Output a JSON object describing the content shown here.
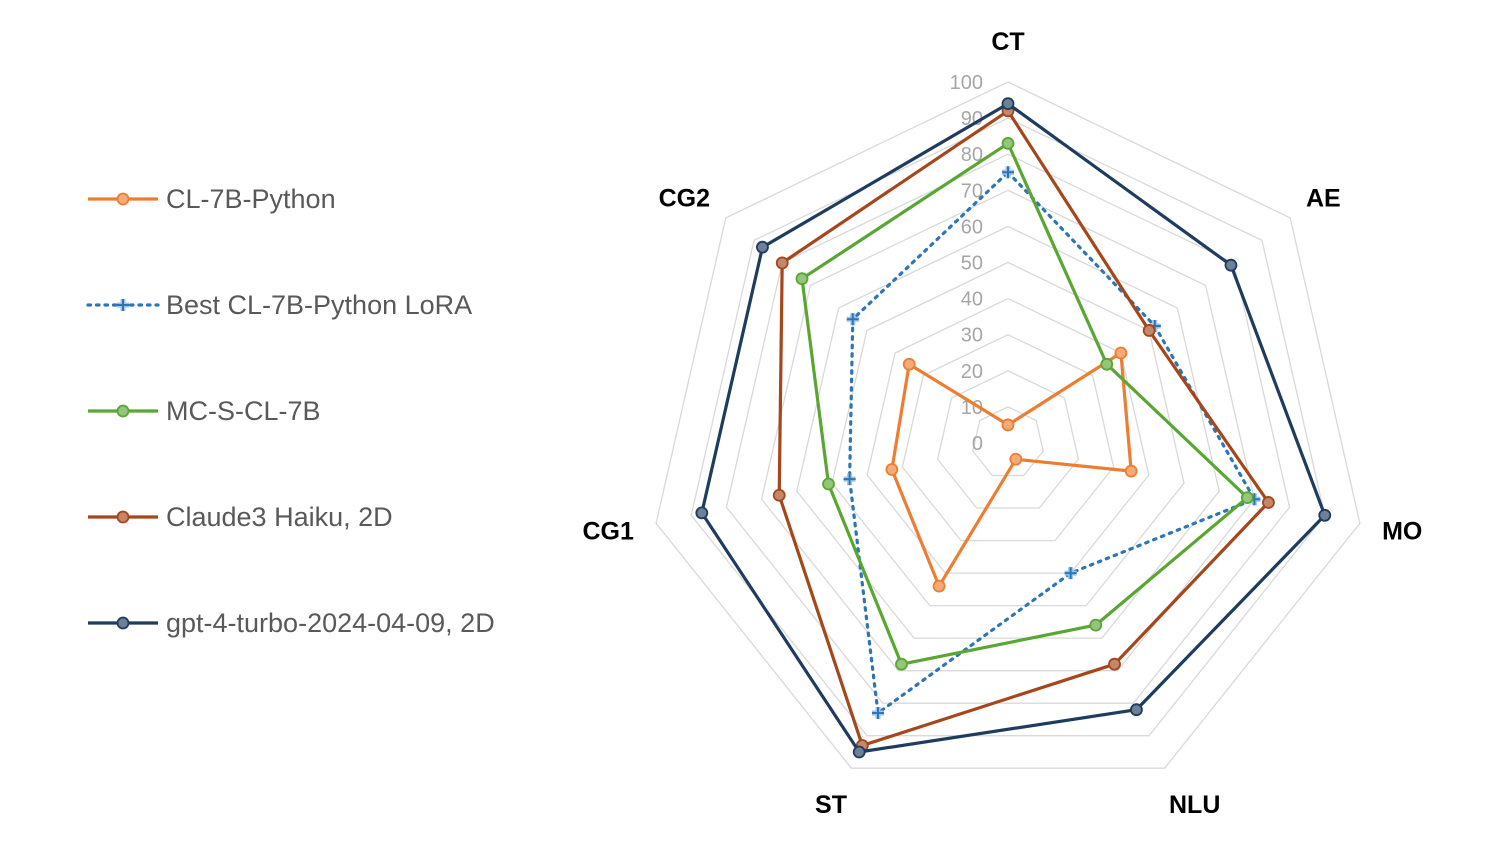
{
  "chart_data": {
    "type": "radar",
    "axes": [
      "CT",
      "AE",
      "MO",
      "NLU",
      "ST",
      "CG1",
      "CG2"
    ],
    "ticks": [
      "0",
      "10",
      "20",
      "30",
      "40",
      "50",
      "60",
      "70",
      "80",
      "90",
      "100"
    ],
    "rlim": [
      0,
      100
    ],
    "legend_position": "left",
    "series": [
      {
        "name": "CL-7B-Python",
        "color": "#ed7d31",
        "dash": "solid",
        "marker": "circle",
        "values": [
          5,
          40,
          35,
          5,
          44,
          33,
          35
        ]
      },
      {
        "name": "Best CL-7B-Python LoRA",
        "color": "#2e75b6",
        "dash": "dotted",
        "marker": "cross",
        "values": [
          75,
          52,
          70,
          40,
          83,
          45,
          55
        ]
      },
      {
        "name": "MC-S-CL-7B",
        "color": "#5aa632",
        "dash": "solid",
        "marker": "circle",
        "values": [
          83,
          35,
          68,
          56,
          68,
          51,
          73
        ]
      },
      {
        "name": "Claude3 Haiku, 2D",
        "color": "#a5461b",
        "dash": "solid",
        "marker": "circle",
        "values": [
          92,
          50,
          74,
          68,
          93,
          65,
          80
        ]
      },
      {
        "name": "gpt-4-turbo-2024-04-09, 2D",
        "color": "#1f3b5e",
        "dash": "solid",
        "marker": "circle",
        "values": [
          94,
          79,
          90,
          82,
          95,
          87,
          87
        ]
      }
    ]
  }
}
